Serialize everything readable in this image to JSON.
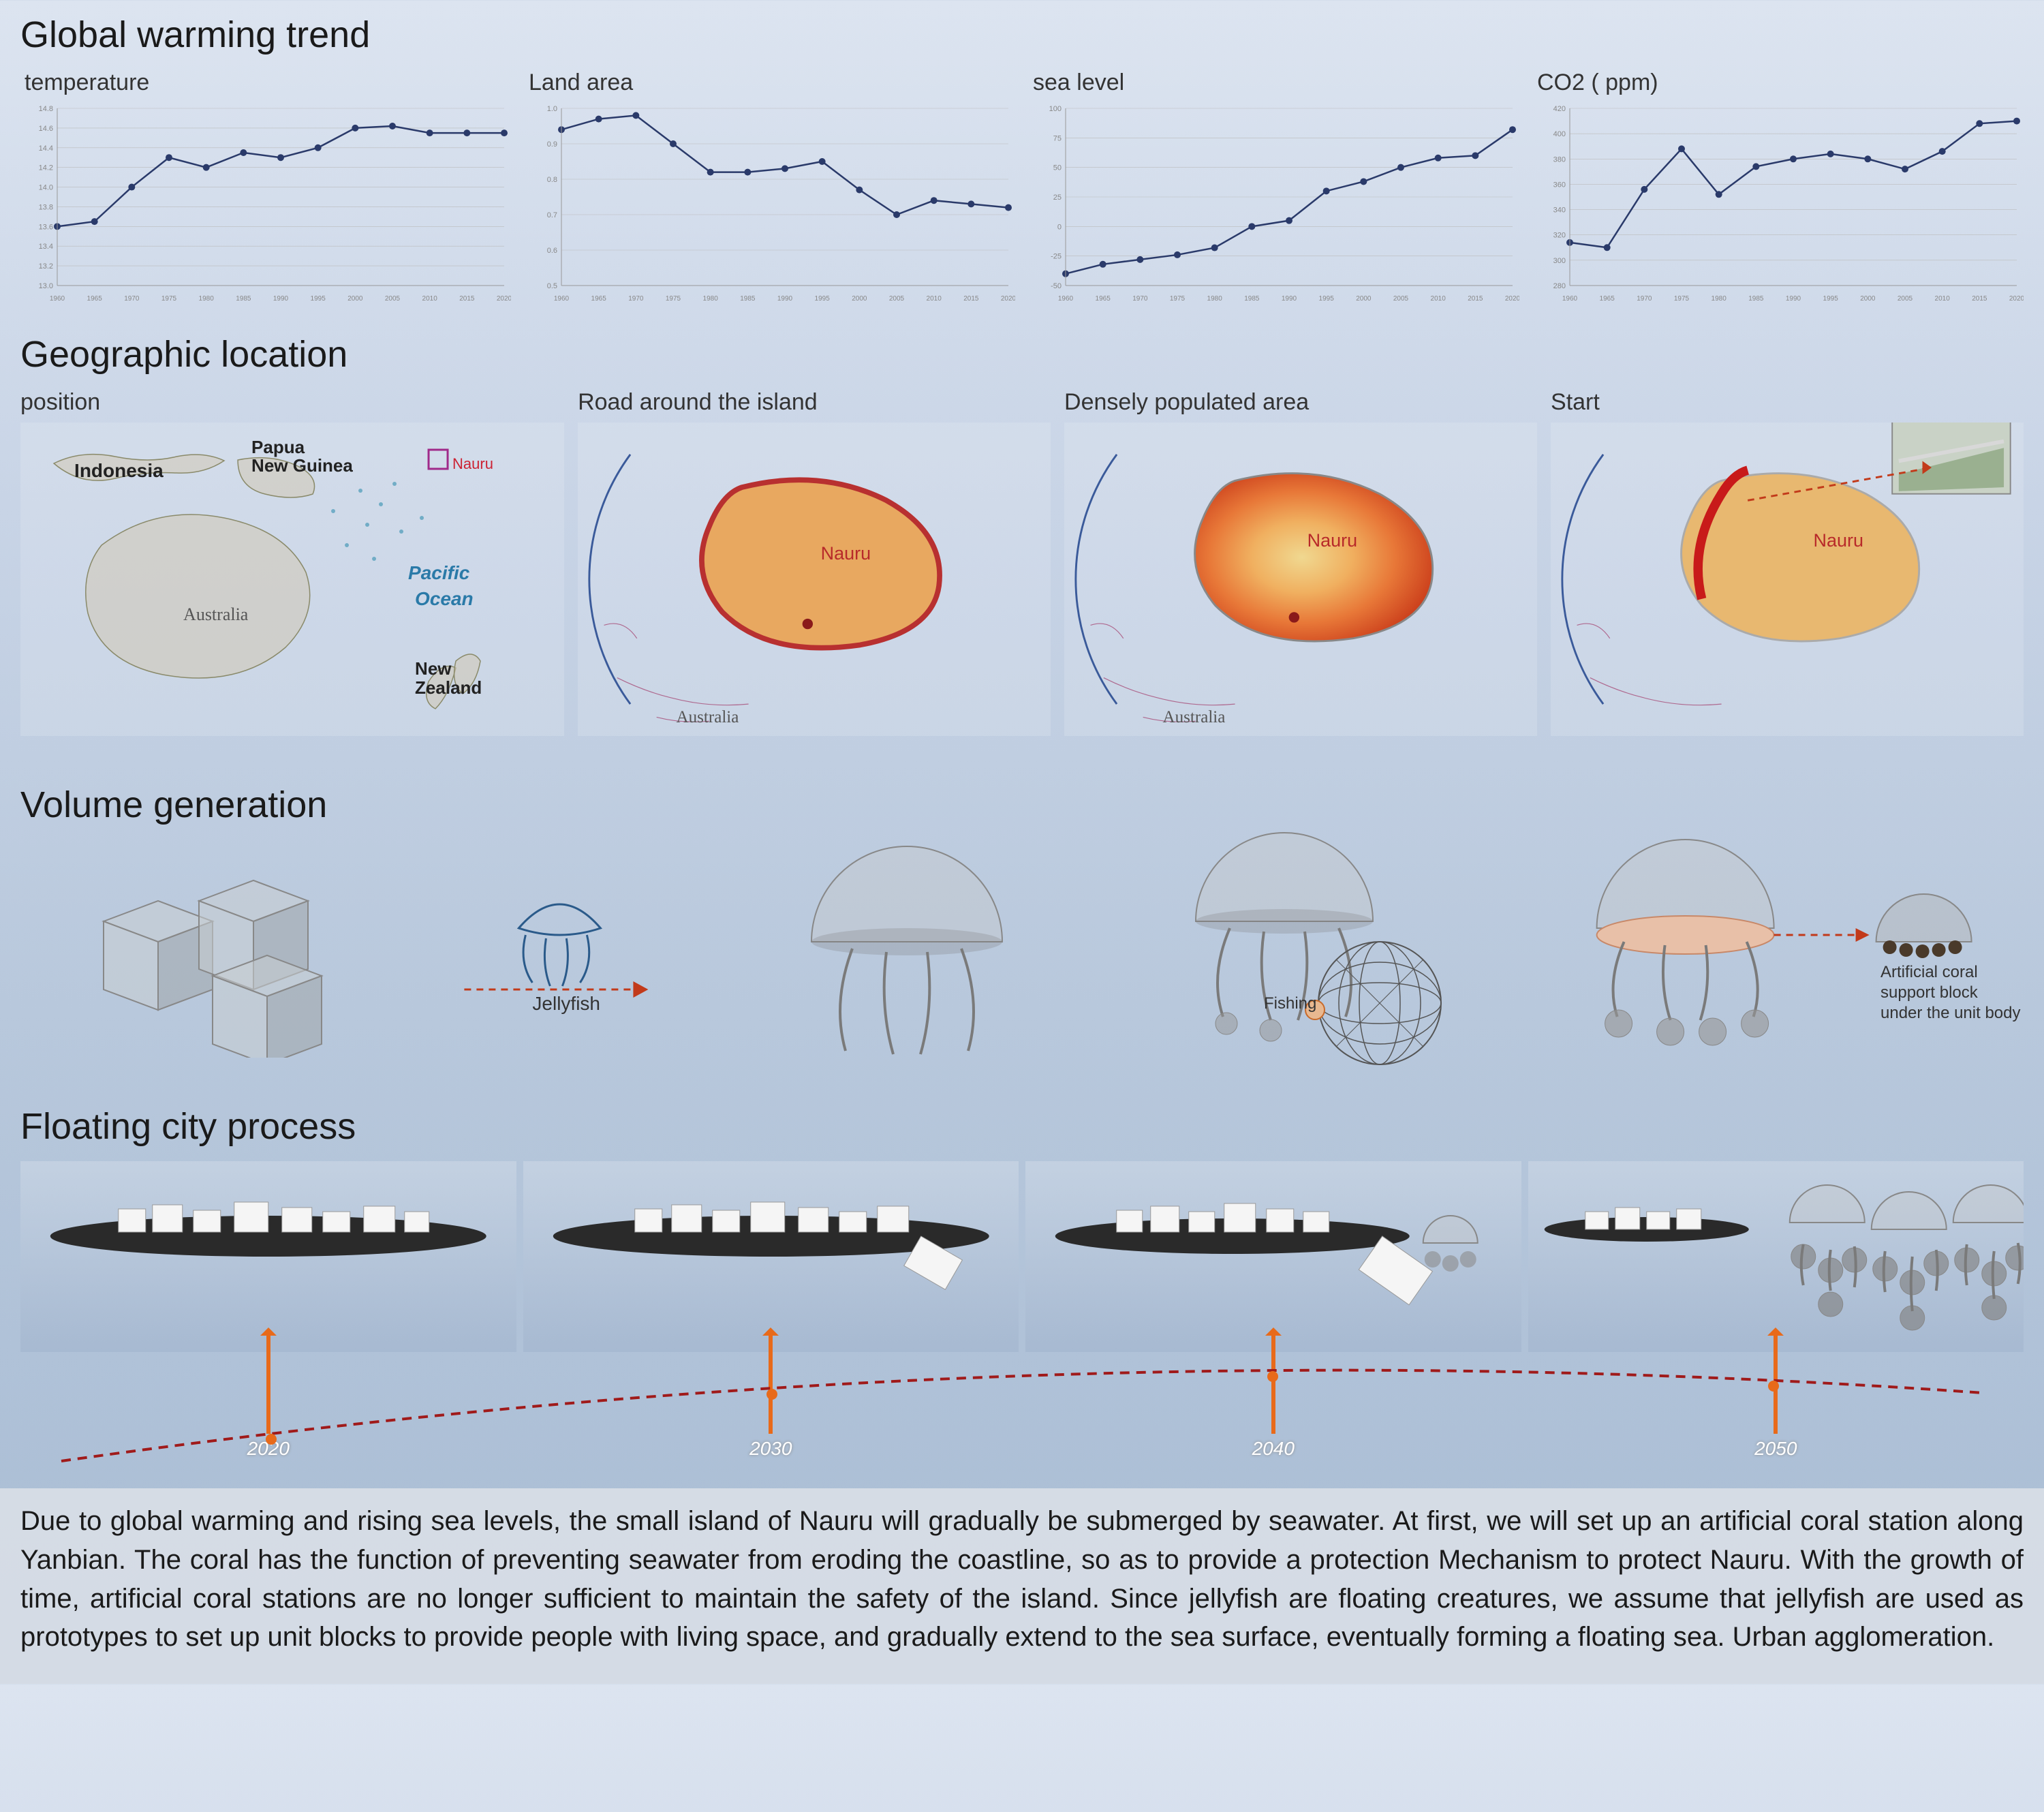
{
  "sections": {
    "warming_title": "Global warming trend",
    "geo_title": "Geographic location",
    "volume_title": "Volume generation",
    "process_title": "Floating city process"
  },
  "charts": {
    "line_color": "#2a3a6a",
    "marker_color": "#2a3a6a",
    "marker_radius": 5,
    "line_width": 2.5,
    "grid_color": "#bbb",
    "x_years": [
      "1960",
      "1965",
      "1970",
      "1975",
      "1980",
      "1985",
      "1990",
      "1995",
      "2000",
      "2005",
      "2010",
      "2015",
      "2020"
    ],
    "series": [
      {
        "label": "temperature",
        "ylim": [
          13.0,
          14.8
        ],
        "yticks": [
          "13.0",
          "13.2",
          "13.4",
          "13.6",
          "13.8",
          "14.0",
          "14.2",
          "14.4",
          "14.6",
          "14.8"
        ],
        "data": [
          13.6,
          13.65,
          14.0,
          14.3,
          14.2,
          14.35,
          14.3,
          14.4,
          14.6,
          14.62,
          14.55,
          14.55,
          14.55
        ]
      },
      {
        "label": "Land area",
        "ylim": [
          0.5,
          1.0
        ],
        "yticks": [
          "0.5",
          "0.6",
          "0.7",
          "0.8",
          "0.9",
          "1.0"
        ],
        "data": [
          0.94,
          0.97,
          0.98,
          0.9,
          0.82,
          0.82,
          0.83,
          0.85,
          0.77,
          0.7,
          0.74,
          0.73,
          0.72
        ]
      },
      {
        "label": "sea level",
        "ylim": [
          -50,
          100
        ],
        "yticks": [
          "-50",
          "-25",
          "0",
          "25",
          "50",
          "75",
          "100"
        ],
        "data": [
          -40,
          -32,
          -28,
          -24,
          -18,
          0,
          5,
          30,
          38,
          50,
          58,
          60,
          82
        ]
      },
      {
        "label": "CO2 ( ppm)",
        "ylim": [
          280,
          420
        ],
        "yticks": [
          "280",
          "300",
          "320",
          "340",
          "360",
          "380",
          "400",
          "420"
        ],
        "data": [
          314,
          310,
          356,
          388,
          352,
          374,
          380,
          384,
          380,
          372,
          386,
          408,
          410
        ]
      }
    ]
  },
  "geo": {
    "position_label": "position",
    "map_labels": {
      "indonesia": "Indonesia",
      "png": "Papua New Guinea",
      "australia": "Australia",
      "nz": "New Zealand",
      "pacific": "Pacific Ocean",
      "nauru": "Nauru"
    },
    "panels": [
      {
        "label": "Road around the island",
        "mode": "road"
      },
      {
        "label": "Densely populated area",
        "mode": "density"
      },
      {
        "label": "Start",
        "mode": "start"
      }
    ],
    "island_color": "#e8a860",
    "road_color": "#b83030",
    "arc_color": "#3a5a9a",
    "heat_colors": [
      "#f0d088",
      "#f0a850",
      "#e86838",
      "#c82818"
    ]
  },
  "volume": {
    "jellyfish_label": "Jellyfish",
    "fishing_label": "Fishing",
    "coral_label": "Artificial coral support block under the unit body",
    "dashed_arrow_color": "#c23a1a"
  },
  "process": {
    "years": [
      "2020",
      "2030",
      "2040",
      "2050"
    ],
    "arrow_color": "#e86a1a",
    "timeline_color": "#a01a1a"
  },
  "description": "Due to global warming and rising sea levels, the small island of Nauru will gradually be submerged by seawater. At first, we will set up an artificial coral station along Yanbian. The coral has the function of preventing seawater from eroding the coastline, so as to provide a protection Mechanism to protect Nauru. With the growth of time, artificial coral stations are no longer sufficient to maintain the safety of the island. Since jellyfish are floating creatures, we assume that jellyfish are used as prototypes to set up unit blocks to provide people with living space, and gradually extend to the sea surface, eventually forming a floating sea. Urban agglomeration."
}
